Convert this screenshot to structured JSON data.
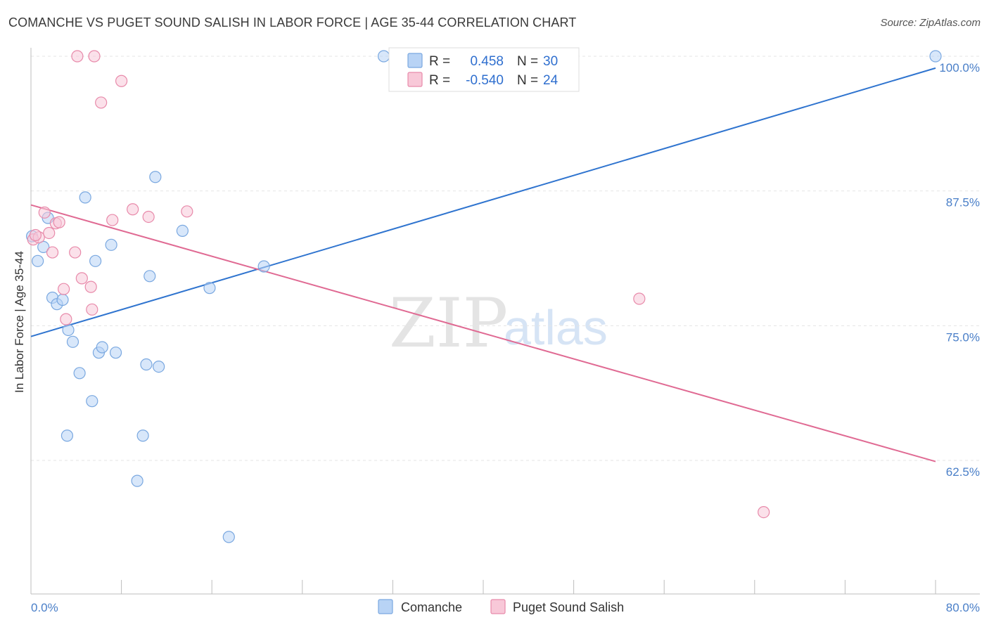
{
  "header": {
    "title": "COMANCHE VS PUGET SOUND SALISH IN LABOR FORCE | AGE 35-44 CORRELATION CHART",
    "source": "Source: ZipAtlas.com"
  },
  "watermark": {
    "zip": "ZIP",
    "atlas": "atlas"
  },
  "legend": {
    "rows": [
      {
        "r_label": "R =",
        "r_value": "0.458",
        "n_label": "N =",
        "n_value": "30",
        "color": "#7aa8e0",
        "fill": "#b8d3f5"
      },
      {
        "r_label": "R =",
        "r_value": "-0.540",
        "n_label": "N =",
        "n_value": "24",
        "color": "#e88aaa",
        "fill": "#f8c8d8"
      }
    ]
  },
  "bottom_legend": {
    "items": [
      {
        "label": "Comanche",
        "fill": "#b8d3f5",
        "stroke": "#7aa8e0"
      },
      {
        "label": "Puget Sound Salish",
        "fill": "#f8c8d8",
        "stroke": "#e88aaa"
      }
    ]
  },
  "chart_data": {
    "type": "scatter",
    "title": "COMANCHE VS PUGET SOUND SALISH IN LABOR FORCE | AGE 35-44 CORRELATION CHART",
    "xlabel": "",
    "ylabel": "In Labor Force | Age 35-44",
    "xlim": [
      0,
      80
    ],
    "ylim": [
      50,
      101
    ],
    "x_tick_labels": [
      "0.0%",
      "80.0%"
    ],
    "y_ticks": [
      {
        "value": 100,
        "label": "100.0%"
      },
      {
        "value": 87.5,
        "label": "87.5%"
      },
      {
        "value": 75,
        "label": "75.0%"
      },
      {
        "value": 62.5,
        "label": "62.5%"
      }
    ],
    "grid": true,
    "colors": {
      "comanche_line": "#2f74cf",
      "salish_line": "#e06a93",
      "comanche_point_fill": "#b8d3f5",
      "comanche_point_stroke": "#7aa8e0",
      "salish_point_fill": "#f8c8d8",
      "salish_point_stroke": "#e88aaa",
      "grid": "#e5e5e5",
      "tick_label": "#4a7fc8"
    },
    "series": [
      {
        "name": "Comanche",
        "r": 0.458,
        "n": 30,
        "trend": {
          "x": [
            0,
            80
          ],
          "y": [
            74.0,
            98.9
          ]
        },
        "points": [
          {
            "x": 0.1,
            "y": 83.3
          },
          {
            "x": 0.6,
            "y": 81.0
          },
          {
            "x": 1.1,
            "y": 82.3
          },
          {
            "x": 1.5,
            "y": 85.0
          },
          {
            "x": 1.9,
            "y": 77.6
          },
          {
            "x": 2.3,
            "y": 77.0
          },
          {
            "x": 2.8,
            "y": 77.4
          },
          {
            "x": 3.3,
            "y": 74.6
          },
          {
            "x": 3.7,
            "y": 73.5
          },
          {
            "x": 4.3,
            "y": 70.6
          },
          {
            "x": 4.8,
            "y": 86.9
          },
          {
            "x": 5.4,
            "y": 68.0
          },
          {
            "x": 5.7,
            "y": 81.0
          },
          {
            "x": 6.0,
            "y": 72.5
          },
          {
            "x": 6.3,
            "y": 73.0
          },
          {
            "x": 7.1,
            "y": 82.5
          },
          {
            "x": 7.5,
            "y": 72.5
          },
          {
            "x": 3.2,
            "y": 64.8
          },
          {
            "x": 9.4,
            "y": 60.6
          },
          {
            "x": 9.9,
            "y": 64.8
          },
          {
            "x": 10.2,
            "y": 71.4
          },
          {
            "x": 10.5,
            "y": 79.6
          },
          {
            "x": 11.0,
            "y": 88.8
          },
          {
            "x": 11.3,
            "y": 71.2
          },
          {
            "x": 13.4,
            "y": 83.8
          },
          {
            "x": 15.8,
            "y": 78.5
          },
          {
            "x": 17.5,
            "y": 55.4
          },
          {
            "x": 20.6,
            "y": 80.5
          },
          {
            "x": 31.2,
            "y": 100.0
          },
          {
            "x": 80.0,
            "y": 100.0
          }
        ]
      },
      {
        "name": "Puget Sound Salish",
        "r": -0.54,
        "n": 24,
        "trend": {
          "x": [
            0,
            80
          ],
          "y": [
            86.2,
            62.4
          ]
        },
        "points": [
          {
            "x": 0.2,
            "y": 83.0
          },
          {
            "x": 0.7,
            "y": 83.2
          },
          {
            "x": 1.2,
            "y": 85.5
          },
          {
            "x": 1.6,
            "y": 83.6
          },
          {
            "x": 1.9,
            "y": 81.8
          },
          {
            "x": 2.2,
            "y": 84.5
          },
          {
            "x": 2.5,
            "y": 84.6
          },
          {
            "x": 2.9,
            "y": 78.4
          },
          {
            "x": 3.1,
            "y": 75.6
          },
          {
            "x": 3.9,
            "y": 81.8
          },
          {
            "x": 4.1,
            "y": 100.0
          },
          {
            "x": 4.5,
            "y": 79.4
          },
          {
            "x": 5.3,
            "y": 78.6
          },
          {
            "x": 5.4,
            "y": 76.5
          },
          {
            "x": 5.6,
            "y": 100.0
          },
          {
            "x": 6.2,
            "y": 95.7
          },
          {
            "x": 7.2,
            "y": 84.8
          },
          {
            "x": 8.0,
            "y": 97.7
          },
          {
            "x": 9.0,
            "y": 85.8
          },
          {
            "x": 10.4,
            "y": 85.1
          },
          {
            "x": 13.8,
            "y": 85.6
          },
          {
            "x": 53.8,
            "y": 77.5
          },
          {
            "x": 64.8,
            "y": 57.7
          },
          {
            "x": 0.4,
            "y": 83.4
          }
        ]
      }
    ]
  }
}
